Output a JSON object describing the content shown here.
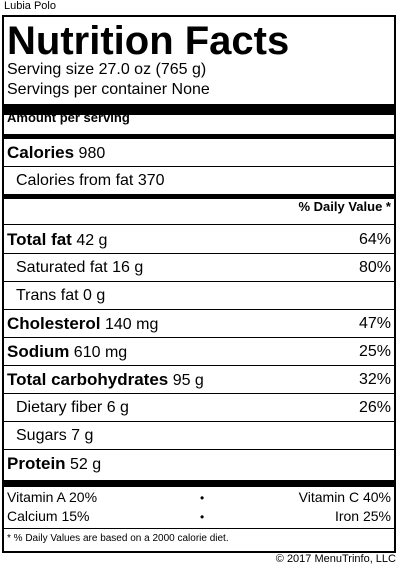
{
  "item_name": "Lubia Polo",
  "title": "Nutrition Facts",
  "serving_size": "Serving size 27.0 oz (765 g)",
  "servings_per_container": "Servings per container None",
  "amount_per_serving": "Amount per serving",
  "calories": {
    "label": "Calories",
    "value": "980"
  },
  "calories_from_fat": "Calories from fat 370",
  "daily_value_header": "% Daily Value *",
  "nutrients": [
    {
      "label": "Total fat",
      "amount": "42 g",
      "pct": "64%"
    },
    {
      "label": "Saturated fat",
      "amount": "16 g",
      "pct": "80%"
    },
    {
      "label": "Trans fat",
      "amount": "0 g",
      "pct": ""
    },
    {
      "label": "Cholesterol",
      "amount": "140 mg",
      "pct": "47%"
    },
    {
      "label": "Sodium",
      "amount": "610 mg",
      "pct": "25%"
    },
    {
      "label": "Total carbohydrates",
      "amount": "95 g",
      "pct": "32%"
    },
    {
      "label": "Dietary fiber",
      "amount": "6 g",
      "pct": "26%"
    },
    {
      "label": "Sugars",
      "amount": "7 g",
      "pct": ""
    },
    {
      "label": "Protein",
      "amount": "52 g",
      "pct": ""
    }
  ],
  "vitamins": {
    "vitamin_a": "Vitamin A 20%",
    "vitamin_c": "Vitamin C 40%",
    "calcium": "Calcium 15%",
    "iron": "Iron 25%",
    "bullet": "•"
  },
  "footnote": "* % Daily Values are based on a 2000 calorie diet.",
  "copyright": "© 2017 MenuTrinfo, LLC"
}
